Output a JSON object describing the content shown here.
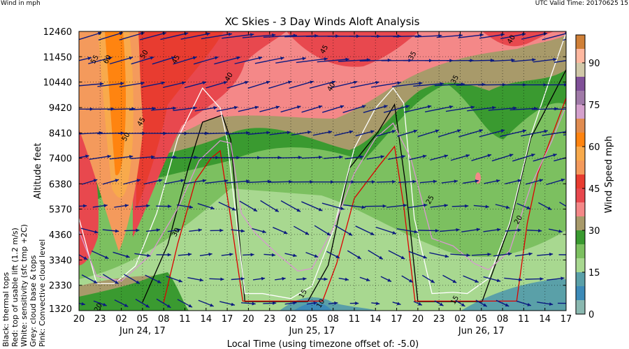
{
  "header": {
    "left": "Wind in mph",
    "right": "UTC Valid Time: 20170625 15"
  },
  "legend_notes": [
    "Black: thermal tops",
    "Red: top of usable lift (1.2 m/s)",
    "White: sensitivity (sfc tmp +2C)",
    "Grey: cloud base & tops",
    "Pink: Convective cloud level"
  ],
  "chart_data": {
    "type": "contour",
    "title": "XC Skies - 3 Day Winds Aloft Analysis",
    "xlabel": "Local Time (using timezone offset of: -5.0)",
    "ylabel": "Altitude feet",
    "xlim_hours": [
      0,
      69
    ],
    "ylim": [
      1320,
      12460
    ],
    "x_tick_labels": [
      "20",
      "23",
      "02",
      "05",
      "08",
      "11",
      "14",
      "17",
      "20",
      "23",
      "02",
      "05",
      "08",
      "11",
      "14",
      "17",
      "20",
      "23",
      "02",
      "05",
      "08",
      "11",
      "14",
      "17"
    ],
    "date_labels": [
      {
        "label": "Jun 24, 17",
        "hour": 9
      },
      {
        "label": "Jun 25, 17",
        "hour": 33
      },
      {
        "label": "Jun 26, 17",
        "hour": 57
      }
    ],
    "y_ticks": [
      1320,
      2330,
      3340,
      4360,
      5370,
      6380,
      7400,
      8410,
      9420,
      10440,
      11450,
      12460
    ],
    "colorbar": {
      "label": "Wind Speed mph",
      "ticks": [
        0,
        15,
        30,
        45,
        60,
        75,
        90
      ],
      "levels": [
        0,
        5,
        10,
        15,
        20,
        25,
        30,
        35,
        40,
        45,
        50,
        55,
        60,
        65,
        70,
        75,
        80,
        85,
        90,
        95,
        100
      ],
      "colors": [
        "#8ab8b0",
        "#3d8bb8",
        "#5aa0a8",
        "#a8d890",
        "#7cc060",
        "#3a9a30",
        "#a89a6a",
        "#f48888",
        "#e8484e",
        "#e83c30",
        "#f49a5c",
        "#f8aa4c",
        "#ff8410",
        "#e08c50",
        "#d4a0cc",
        "#a07aa8",
        "#805098",
        "#d0c8a8",
        "#ffb8a0",
        "#d08038"
      ]
    },
    "contour_labels": [
      {
        "text": "55",
        "hour": 2.5,
        "alt": 11300
      },
      {
        "text": "60",
        "hour": 4.3,
        "alt": 11300
      },
      {
        "text": "50",
        "hour": 9.5,
        "alt": 11500
      },
      {
        "text": "45",
        "hour": 14,
        "alt": 11300
      },
      {
        "text": "40",
        "hour": 21.5,
        "alt": 10600
      },
      {
        "text": "45",
        "hour": 35,
        "alt": 11700
      },
      {
        "text": "40",
        "hour": 36,
        "alt": 10200
      },
      {
        "text": "35",
        "hour": 47.5,
        "alt": 11450
      },
      {
        "text": "35",
        "hour": 53.5,
        "alt": 10500
      },
      {
        "text": "40",
        "hour": 61.5,
        "alt": 12100
      },
      {
        "text": "45",
        "hour": 8.5,
        "alt": 8700
      },
      {
        "text": "50",
        "hour": 7.7,
        "alt": 8600
      },
      {
        "text": "30",
        "hour": 14,
        "alt": 4400
      },
      {
        "text": "25",
        "hour": 50,
        "alt": 5700
      },
      {
        "text": "20",
        "hour": 62.5,
        "alt": 4900
      },
      {
        "text": "20",
        "hour": 3,
        "alt": 1400
      },
      {
        "text": "15",
        "hour": 32,
        "alt": 1950
      },
      {
        "text": "10",
        "hour": 34.5,
        "alt": 1560
      },
      {
        "text": "15",
        "hour": 53.5,
        "alt": 1700
      }
    ],
    "series": [
      {
        "name": "thermal tops",
        "color": "#000000",
        "x": [
          9,
          12.6,
          15.5,
          17.5,
          20.3,
          21.5,
          23.5,
          32.4,
          35.3,
          38.3,
          42.3,
          44.7,
          46.2,
          48,
          57.1,
          61.1,
          64,
          69
        ],
        "y": [
          1650,
          3970,
          7030,
          8840,
          9120,
          8140,
          1680,
          1680,
          3130,
          7000,
          8420,
          9540,
          6470,
          1680,
          1680,
          4800,
          8200,
          10930
        ]
      },
      {
        "name": "top of usable lift",
        "color": "#dd0000",
        "x": [
          12,
          14,
          16.5,
          18.7,
          20,
          21.5,
          23.2,
          34.5,
          36.5,
          39,
          42.5,
          44.7,
          46,
          47.6,
          62,
          63.5,
          65,
          69
        ],
        "y": [
          1650,
          4000,
          6500,
          7400,
          7700,
          5000,
          1700,
          1700,
          3200,
          5800,
          7100,
          7870,
          5500,
          1700,
          1700,
          4800,
          6800,
          9800
        ]
      },
      {
        "name": "sensitivity",
        "color": "#ffffff",
        "x": [
          0,
          2.5,
          5,
          8,
          11,
          14,
          17.5,
          20,
          21,
          23.5,
          26,
          30,
          33,
          36,
          39,
          42,
          44.5,
          46,
          47.5,
          50,
          53,
          55,
          58,
          61,
          64,
          67,
          69
        ],
        "y": [
          5000,
          2400,
          2400,
          3100,
          5200,
          8200,
          10200,
          9400,
          8100,
          2000,
          2000,
          1800,
          2300,
          4500,
          7800,
          9400,
          10200,
          9600,
          5000,
          2000,
          2050,
          2000,
          2600,
          4800,
          8300,
          10800,
          12400
        ]
      },
      {
        "name": "convective cloud level",
        "color": "#d898d0",
        "x": [
          0,
          2.5,
          6,
          10,
          14,
          17,
          20,
          21.5,
          23,
          25,
          28,
          31,
          33,
          36,
          39,
          42,
          44.5,
          47,
          50,
          53,
          56,
          58,
          61,
          64,
          67,
          69
        ],
        "y": [
          4500,
          2700,
          2500,
          3500,
          5400,
          7300,
          8100,
          8000,
          5200,
          4400,
          3600,
          2900,
          3000,
          4600,
          6800,
          8200,
          8800,
          7400,
          4200,
          3900,
          3200,
          2950,
          3700,
          6300,
          8100,
          9500
        ]
      }
    ]
  }
}
